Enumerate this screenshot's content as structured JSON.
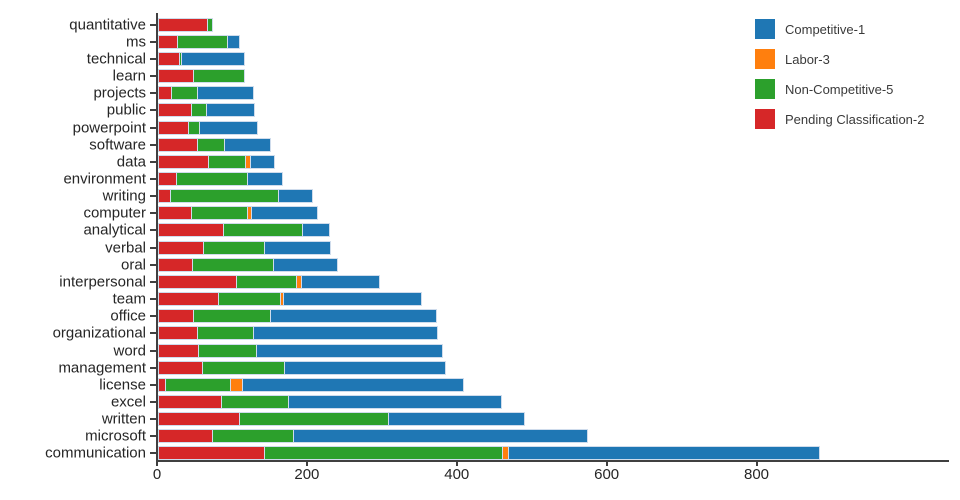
{
  "chart_data": {
    "type": "bar",
    "orientation": "horizontal",
    "stacked": true,
    "title": "",
    "xlabel": "",
    "ylabel": "",
    "categories": [
      "quantitative",
      "ms",
      "technical",
      "learn",
      "projects",
      "public",
      "powerpoint",
      "software",
      "data",
      "environment",
      "writing",
      "computer",
      "analytical",
      "verbal",
      "oral",
      "interpersonal",
      "team",
      "office",
      "organizational",
      "word",
      "management",
      "license",
      "excel",
      "written",
      "microsoft",
      "communication"
    ],
    "series": [
      {
        "name": "Competitive-1",
        "color": "#1f77b4",
        "values": [
          0,
          17,
          84,
          0,
          74,
          64,
          77,
          62,
          32,
          47,
          46,
          87,
          36,
          88,
          85,
          104,
          185,
          221,
          245,
          249,
          216,
          294,
          284,
          182,
          393,
          416
        ]
      },
      {
        "name": "Labor-3",
        "color": "#ff7f0e",
        "values": [
          0,
          0,
          0,
          0,
          0,
          0,
          0,
          0,
          6,
          0,
          0,
          6,
          0,
          0,
          0,
          6,
          4,
          0,
          0,
          0,
          0,
          17,
          0,
          0,
          0,
          8
        ]
      },
      {
        "name": "Non-Competitive-5",
        "color": "#2ca02c",
        "values": [
          6,
          66,
          2,
          68,
          35,
          19,
          14,
          36,
          50,
          94,
          143,
          74,
          105,
          81,
          108,
          81,
          82,
          103,
          75,
          77,
          109,
          86,
          90,
          198,
          108,
          317
        ]
      },
      {
        "name": "Pending Classification-2",
        "color": "#d62728",
        "values": [
          67,
          27,
          30,
          48,
          19,
          46,
          42,
          53,
          68,
          26,
          18,
          46,
          88,
          62,
          47,
          105,
          82,
          48,
          53,
          55,
          60,
          11,
          85,
          110,
          73,
          143
        ]
      }
    ],
    "stack_order": [
      "Pending Classification-2",
      "Non-Competitive-5",
      "Labor-3",
      "Competitive-1"
    ],
    "totals": [
      73,
      110,
      116,
      116,
      128,
      129,
      133,
      151,
      156,
      167,
      207,
      213,
      229,
      231,
      240,
      296,
      353,
      372,
      373,
      381,
      385,
      408,
      459,
      490,
      574,
      884
    ],
    "x_ticks": [
      "0",
      "200",
      "400",
      "600",
      "800"
    ],
    "x_tick_values": [
      0,
      200,
      400,
      600,
      800
    ],
    "xlim": [
      0,
      1056
    ],
    "grid": false,
    "legend_position": "upper right",
    "colors": {
      "bar_edge": "#cfdcec",
      "axis_spine": "#404040",
      "tick_text": "#262626",
      "legend_text": "#3a3a3a",
      "background": "#ffffff"
    }
  }
}
